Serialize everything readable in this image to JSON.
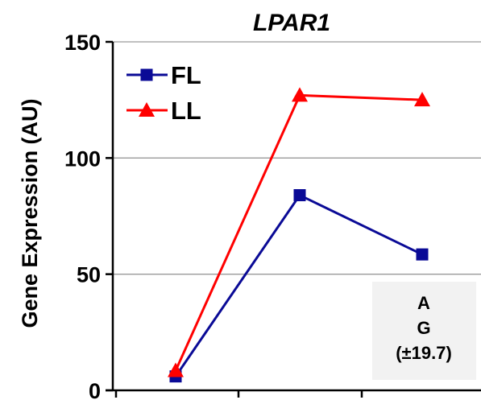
{
  "chart_data": {
    "type": "line",
    "title": "LPAR1",
    "ylabel": "Gene Expression (AU)",
    "xlabel": "",
    "ylim": [
      0,
      150
    ],
    "yticks": [
      0,
      50,
      100,
      150
    ],
    "x": [
      1,
      2,
      3
    ],
    "grid": true,
    "legend": "top-left",
    "series": [
      {
        "name": "FL",
        "values": [
          6,
          84,
          58.5
        ],
        "color": "#0a0a96",
        "marker": "square"
      },
      {
        "name": "LL",
        "values": [
          8.5,
          127,
          125
        ],
        "color": "#ff0000",
        "marker": "triangle"
      }
    ],
    "annotation": {
      "lines": [
        "A",
        "G",
        "(±19.7)"
      ],
      "background": "#f2f2f2"
    }
  }
}
